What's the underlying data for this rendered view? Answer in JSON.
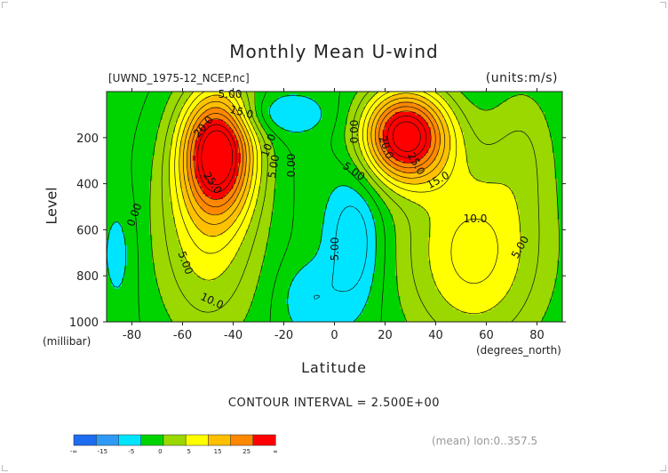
{
  "chart_data": {
    "type": "heatmap",
    "title": "Monthly Mean U-wind",
    "source_label": "[UWND_1975-12_NCEP.nc]",
    "units_label": "(units:m/s)",
    "xlabel": "Latitude",
    "x_unit_label": "(degrees_north)",
    "ylabel": "Level",
    "y_unit_label": "(millibar)",
    "xlim": [
      -90,
      90
    ],
    "ylim": [
      1000,
      0
    ],
    "x_ticks": [
      "-80",
      "-60",
      "-40",
      "-20",
      "0",
      "20",
      "40",
      "60",
      "80"
    ],
    "y_ticks": [
      "200",
      "400",
      "600",
      "800",
      "1000"
    ],
    "contour_interval_text": "CONTOUR INTERVAL = 2.500E+00",
    "contour_labels": [
      "5.00",
      "15.0",
      "20.0",
      "10.0",
      "5.00",
      "0.00",
      "25.0",
      "0.00",
      "5.00",
      "10.0",
      "5.00",
      "0.00",
      "5.00",
      "20.0",
      "25.0",
      "15.0",
      "10.0",
      "5.00"
    ],
    "jets": [
      {
        "lat": -46,
        "level": 260,
        "max_speed": 27.5
      },
      {
        "lat": 28,
        "level": 190,
        "max_speed": 30
      }
    ],
    "colorbar": {
      "tick_labels": [
        "-∞",
        "-15",
        "-5",
        "0",
        "5",
        "15",
        "25",
        "∞"
      ],
      "colors": [
        "#1e6cf0",
        "#2f9af5",
        "#00e5ff",
        "#00d400",
        "#9ad800",
        "#ffff00",
        "#ffc000",
        "#ff8800",
        "#ff0000"
      ]
    },
    "mean_info": "(mean) lon:0..357.5"
  }
}
